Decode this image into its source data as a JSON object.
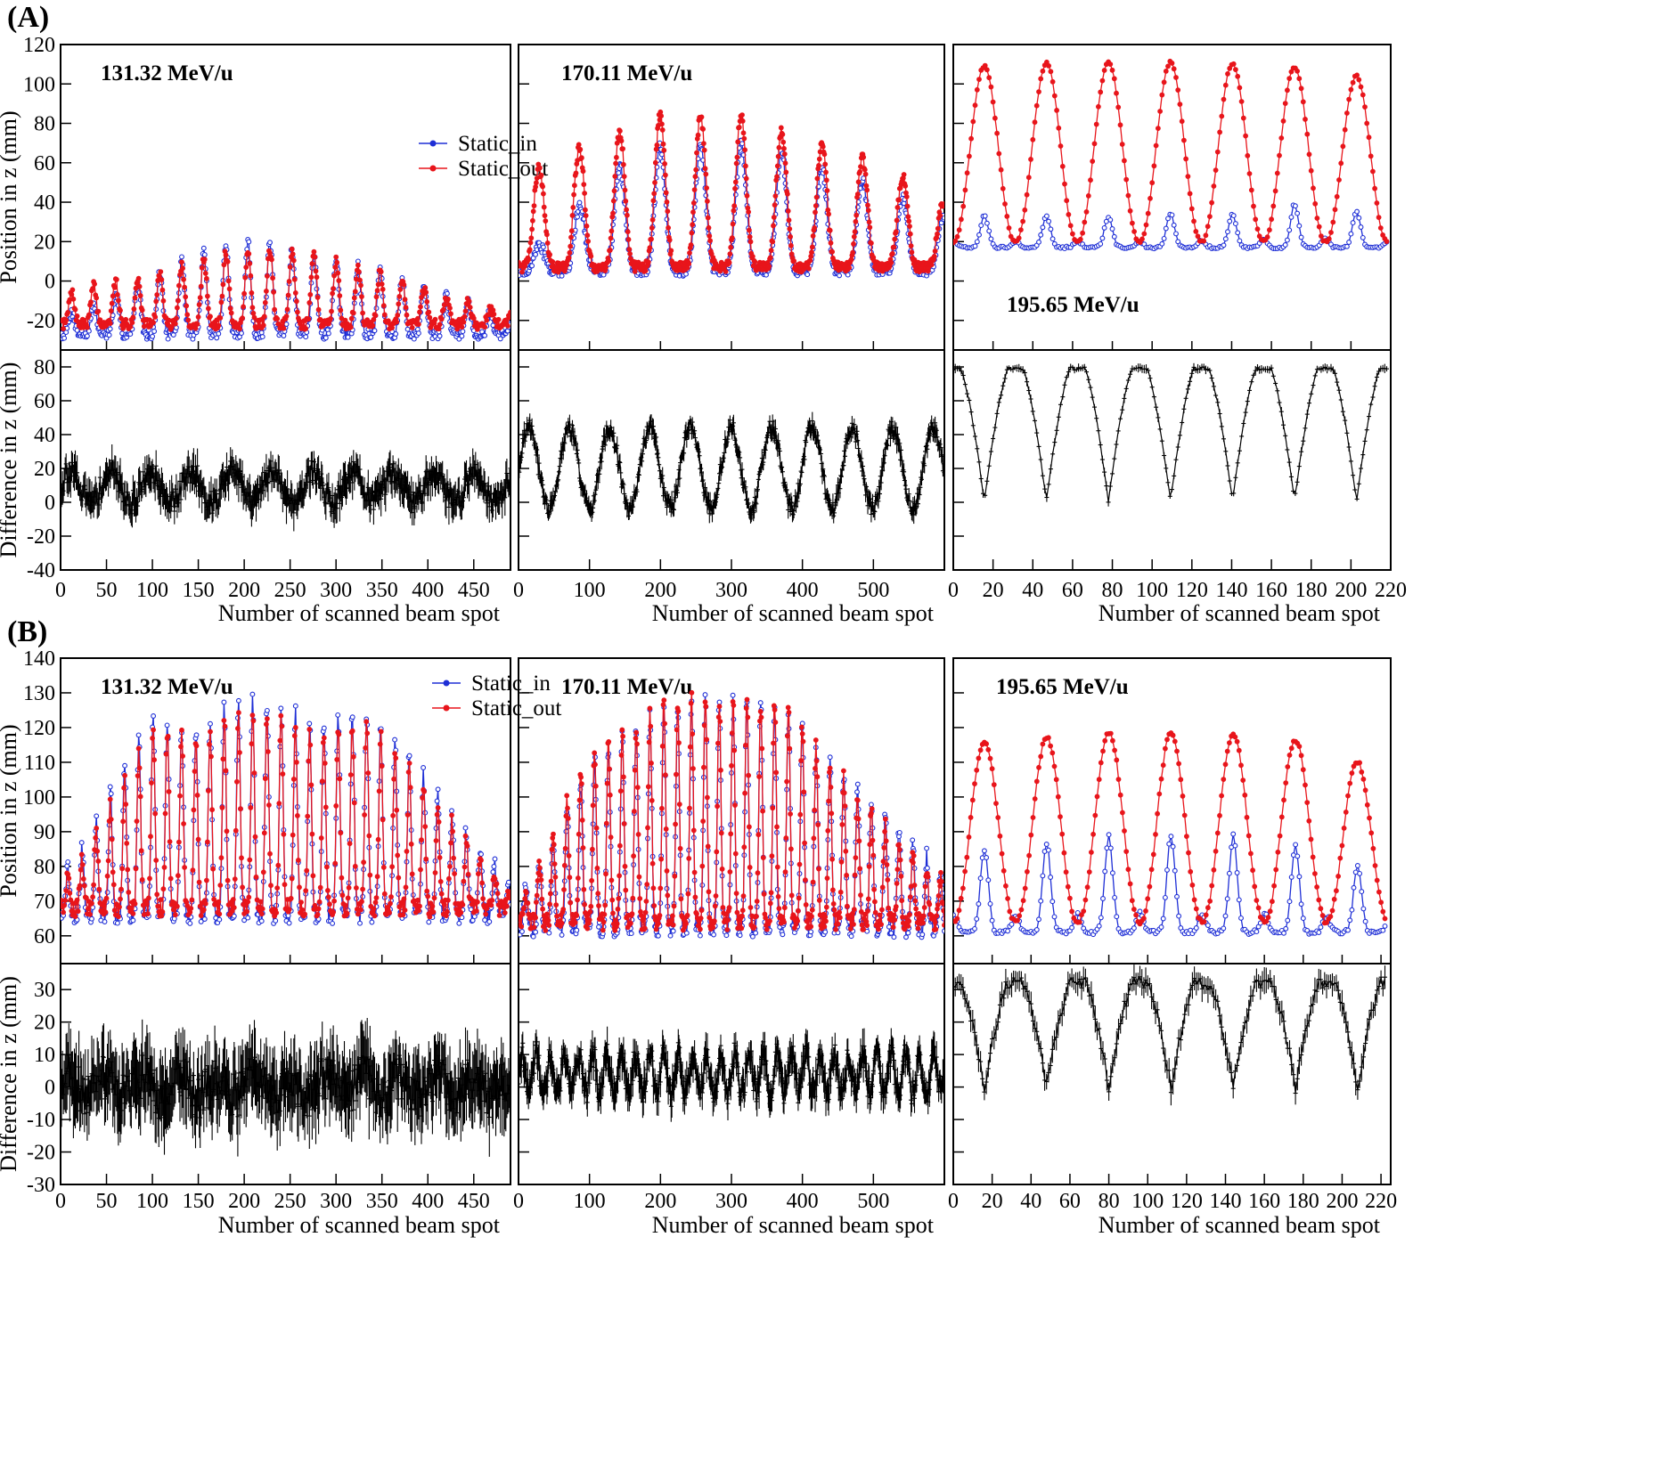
{
  "figure_labels": [
    "(A)",
    "(B)"
  ],
  "colors": {
    "static_in": "#1f2fd6",
    "static_out": "#e8151b",
    "difference": "#000000"
  },
  "chart_data": [
    {
      "id": "A",
      "label": "(A)",
      "type": "line",
      "top_ylabel": "Position in z (mm)",
      "bottom_ylabel": "Difference in z (mm)",
      "xlabel": "Number of scanned beam spot",
      "legend": [
        "Static_in",
        "Static_out"
      ],
      "top_ylim": [
        -35,
        120
      ],
      "top_yticks": [
        "120",
        "100",
        "80",
        "60",
        "40",
        "20",
        "0",
        "-20"
      ],
      "bottom_ylim": [
        -40,
        90
      ],
      "bottom_yticks": [
        "80",
        "60",
        "40",
        "20",
        "0",
        "-20",
        "-40"
      ],
      "columns": [
        {
          "energy": "131.32 MeV/u",
          "xlim": [
            0,
            490
          ],
          "xticks": [
            "0",
            "50",
            "100",
            "150",
            "200",
            "250",
            "300",
            "350",
            "400",
            "450"
          ],
          "n": 490,
          "period": 24,
          "static_in": {
            "base": -27,
            "peaks": [
              [
                0,
                -18
              ],
              [
                20,
                -15
              ],
              [
                40,
                -12
              ],
              [
                70,
                -5
              ],
              [
                100,
                2
              ],
              [
                130,
                10
              ],
              [
                160,
                15
              ],
              [
                190,
                20
              ],
              [
                230,
                20
              ],
              [
                270,
                14
              ],
              [
                310,
                10
              ],
              [
                350,
                5
              ],
              [
                400,
                -5
              ],
              [
                440,
                -10
              ],
              [
                490,
                -20
              ]
            ]
          },
          "static_out": {
            "base": -22,
            "peaks": [
              [
                0,
                -8
              ],
              [
                20,
                -5
              ],
              [
                40,
                -2
              ],
              [
                70,
                0
              ],
              [
                100,
                2
              ],
              [
                130,
                8
              ],
              [
                160,
                12
              ],
              [
                190,
                16
              ],
              [
                230,
                16
              ],
              [
                270,
                15
              ],
              [
                310,
                9
              ],
              [
                350,
                5
              ],
              [
                400,
                -5
              ],
              [
                440,
                -10
              ],
              [
                490,
                -17
              ]
            ]
          },
          "difference": {
            "mean": 9,
            "amp": 9,
            "period": 44,
            "noise": 7,
            "err": 8
          }
        },
        {
          "energy": "170.11 MeV/u",
          "xlim": [
            0,
            600
          ],
          "xticks": [
            "0",
            "100",
            "200",
            "300",
            "400",
            "500"
          ],
          "n": 600,
          "period": 57,
          "static_in": {
            "base": 5,
            "peaks": [
              [
                0,
                12
              ],
              [
                60,
                25
              ],
              [
                120,
                55
              ],
              [
                200,
                68
              ],
              [
                260,
                70
              ],
              [
                320,
                70
              ],
              [
                380,
                65
              ],
              [
                430,
                58
              ],
              [
                480,
                52
              ],
              [
                540,
                42
              ],
              [
                600,
                32
              ]
            ]
          },
          "static_out": {
            "base": 7,
            "peaks": [
              [
                0,
                50
              ],
              [
                20,
                56
              ],
              [
                60,
                63
              ],
              [
                100,
                70
              ],
              [
                150,
                77
              ],
              [
                200,
                84
              ],
              [
                260,
                84
              ],
              [
                320,
                84
              ],
              [
                370,
                77
              ],
              [
                430,
                70
              ],
              [
                480,
                63
              ],
              [
                530,
                56
              ],
              [
                570,
                47
              ],
              [
                600,
                40
              ]
            ]
          },
          "difference": {
            "mean": 20,
            "amp": 24,
            "period": 57,
            "noise": 5,
            "err": 4
          }
        },
        {
          "energy": "195.65 MeV/u",
          "xlim": [
            0,
            220
          ],
          "xticks": [
            "0",
            "20",
            "40",
            "60",
            "80",
            "100",
            "120",
            "140",
            "160",
            "180",
            "200",
            "220"
          ],
          "n": 218,
          "period": 31.2,
          "static_in": {
            "base": 17,
            "peaks": [
              [
                24,
                33
              ],
              [
                55,
                33
              ],
              [
                86,
                32
              ],
              [
                118,
                35
              ],
              [
                148,
                34
              ],
              [
                181,
                41
              ],
              [
                208,
                34
              ]
            ]
          },
          "static_out": {
            "base": 20,
            "peaks": [
              [
                24,
                109
              ],
              [
                55,
                111
              ],
              [
                86,
                111
              ],
              [
                118,
                111
              ],
              [
                148,
                110
              ],
              [
                181,
                108
              ],
              [
                208,
                103
              ]
            ]
          },
          "difference": {
            "mean": 40,
            "amp": 39,
            "period": 31.2,
            "noise": 1,
            "err": 2
          }
        }
      ]
    },
    {
      "id": "B",
      "label": "(B)",
      "type": "line",
      "top_ylabel": "Position in z (mm)",
      "bottom_ylabel": "Difference in z (mm)",
      "xlabel": "Number of scanned beam spot",
      "legend": [
        "Static_in",
        "Static_out"
      ],
      "top_ylim": [
        52,
        140
      ],
      "top_yticks": [
        "140",
        "130",
        "120",
        "110",
        "100",
        "90",
        "80",
        "70",
        "60"
      ],
      "bottom_ylim": [
        -30,
        38
      ],
      "bottom_yticks": [
        "30",
        "20",
        "10",
        "0",
        "-10",
        "-20",
        "-30"
      ],
      "columns": [
        {
          "energy": "131.32 MeV/u",
          "xlim": [
            0,
            490
          ],
          "xticks": [
            "0",
            "50",
            "100",
            "150",
            "200",
            "250",
            "300",
            "350",
            "400",
            "450"
          ],
          "n": 490,
          "period": 15.5,
          "static_in": {
            "base": 66,
            "peaks": [
              [
                0,
                76
              ],
              [
                30,
                88
              ],
              [
                60,
                104
              ],
              [
                100,
                124
              ],
              [
                150,
                119
              ],
              [
                190,
                128
              ],
              [
                240,
                127
              ],
              [
                280,
                120
              ],
              [
                330,
                126
              ],
              [
                370,
                115
              ],
              [
                410,
                102
              ],
              [
                450,
                88
              ],
              [
                490,
                74
              ]
            ]
          },
          "static_out": {
            "base": 68,
            "peaks": [
              [
                0,
                74
              ],
              [
                30,
                86
              ],
              [
                60,
                100
              ],
              [
                100,
                120
              ],
              [
                150,
                118
              ],
              [
                190,
                125
              ],
              [
                240,
                124
              ],
              [
                280,
                118
              ],
              [
                330,
                123
              ],
              [
                370,
                112
              ],
              [
                410,
                98
              ],
              [
                450,
                85
              ],
              [
                490,
                72
              ]
            ]
          },
          "difference": {
            "mean": 0,
            "amp": 3,
            "period": 40,
            "noise": 7,
            "err": 9
          }
        },
        {
          "energy": "170.11 MeV/u",
          "xlim": [
            0,
            600
          ],
          "xticks": [
            "0",
            "100",
            "200",
            "300",
            "400",
            "500"
          ],
          "n": 600,
          "period": 19.5,
          "static_in": {
            "base": 62,
            "peaks": [
              [
                0,
                70
              ],
              [
                50,
                88
              ],
              [
                100,
                110
              ],
              [
                150,
                118
              ],
              [
                200,
                126
              ],
              [
                260,
                128
              ],
              [
                320,
                127
              ],
              [
                380,
                125
              ],
              [
                430,
                112
              ],
              [
                480,
                103
              ],
              [
                530,
                92
              ],
              [
                570,
                84
              ],
              [
                600,
                78
              ]
            ]
          },
          "static_out": {
            "base": 64,
            "peaks": [
              [
                0,
                68
              ],
              [
                50,
                90
              ],
              [
                100,
                113
              ],
              [
                150,
                118
              ],
              [
                200,
                128
              ],
              [
                260,
                128
              ],
              [
                320,
                128
              ],
              [
                380,
                126
              ],
              [
                430,
                112
              ],
              [
                480,
                100
              ],
              [
                530,
                90
              ],
              [
                570,
                80
              ],
              [
                600,
                75
              ]
            ]
          },
          "difference": {
            "mean": 4,
            "amp": 6,
            "period": 20,
            "noise": 4,
            "err": 4
          }
        },
        {
          "energy": "195.65 MeV/u",
          "xlim": [
            0,
            225
          ],
          "xticks": [
            "0",
            "20",
            "40",
            "60",
            "80",
            "100",
            "120",
            "140",
            "160",
            "180",
            "200",
            "220"
          ],
          "n": 222,
          "period": 32,
          "static_in": {
            "base": 61,
            "peaks": [
              [
                28,
                85
              ],
              [
                59,
                88
              ],
              [
                90,
                89
              ],
              [
                120,
                89
              ],
              [
                153,
                89
              ],
              [
                185,
                85
              ],
              [
                212,
                80
              ]
            ]
          },
          "static_out": {
            "base": 64,
            "peaks": [
              [
                28,
                116
              ],
              [
                59,
                118
              ],
              [
                90,
                119
              ],
              [
                120,
                118
              ],
              [
                153,
                118
              ],
              [
                185,
                116
              ],
              [
                212,
                109
              ]
            ]
          },
          "difference": {
            "mean": 16,
            "amp": 16,
            "period": 32,
            "noise": 2,
            "err": 3
          }
        }
      ]
    }
  ]
}
